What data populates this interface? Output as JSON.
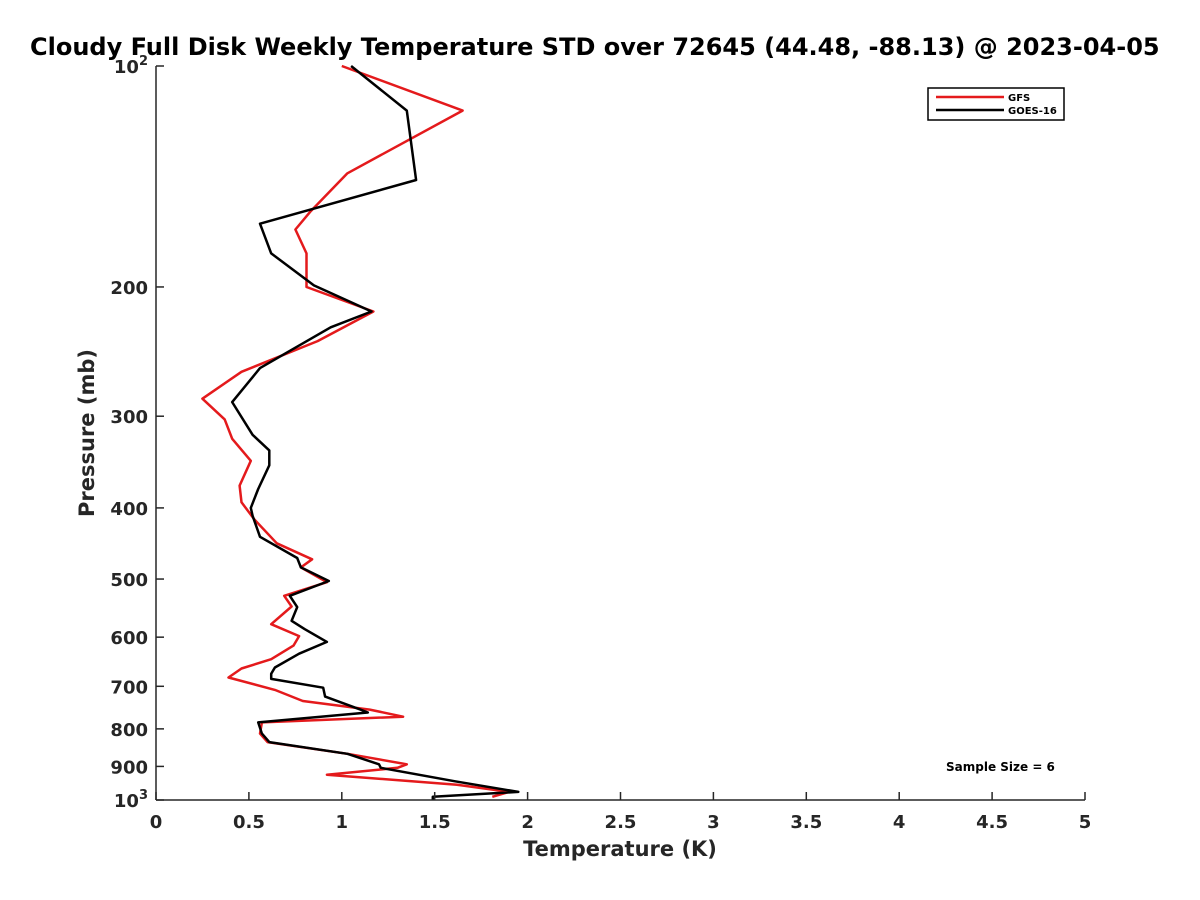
{
  "chart_data": {
    "type": "line",
    "title": "Cloudy Full Disk Weekly Temperature STD over 72645 (44.48, -88.13) @ 2023-04-05",
    "xlabel": "Temperature (K)",
    "ylabel": "Pressure (mb)",
    "xlim": [
      0,
      5
    ],
    "ylim": [
      100,
      1000
    ],
    "y_scale": "log",
    "y_direction": "reversed",
    "x_ticks": [
      0,
      0.5,
      1,
      1.5,
      2,
      2.5,
      3,
      3.5,
      4,
      4.5,
      5
    ],
    "x_tick_labels": [
      "0",
      "0.5",
      "1",
      "1.5",
      "2",
      "2.5",
      "3",
      "3.5",
      "4",
      "4.5",
      "5"
    ],
    "y_ticks": [
      100,
      200,
      300,
      400,
      500,
      600,
      700,
      800,
      900,
      1000
    ],
    "y_tick_labels": [
      {
        "base": "10",
        "exp": "2"
      },
      {
        "base": "200",
        "exp": ""
      },
      {
        "base": "300",
        "exp": ""
      },
      {
        "base": "400",
        "exp": ""
      },
      {
        "base": "500",
        "exp": ""
      },
      {
        "base": "600",
        "exp": ""
      },
      {
        "base": "700",
        "exp": ""
      },
      {
        "base": "800",
        "exp": ""
      },
      {
        "base": "900",
        "exp": ""
      },
      {
        "base": "10",
        "exp": "3"
      }
    ],
    "grid": false,
    "legend_position": "top-right",
    "annotation": "Sample Size = 6",
    "series": [
      {
        "name": "GFS",
        "color": "#e41a1c",
        "x": [
          1.0,
          1.65,
          1.03,
          0.83,
          0.75,
          0.81,
          0.81,
          1.17,
          0.87,
          0.46,
          0.25,
          0.37,
          0.41,
          0.51,
          0.45,
          0.46,
          0.53,
          0.65,
          0.84,
          0.78,
          0.92,
          0.69,
          0.73,
          0.62,
          0.77,
          0.74,
          0.62,
          0.46,
          0.39,
          0.64,
          0.79,
          1.15,
          1.33,
          0.57,
          0.56,
          0.6,
          1.03,
          1.35,
          1.3,
          0.92,
          1.62,
          1.9,
          1.81
        ],
        "y": [
          100,
          115,
          140,
          158,
          167,
          180,
          200,
          216,
          237,
          261,
          284,
          303,
          322,
          345,
          373,
          393,
          415,
          447,
          470,
          482,
          505,
          527,
          545,
          576,
          598,
          616,
          643,
          662,
          681,
          708,
          733,
          753,
          770,
          784,
          812,
          834,
          865,
          894,
          904,
          924,
          953,
          975,
          990
        ]
      },
      {
        "name": "GOES-16",
        "color": "#000000",
        "x": [
          1.05,
          1.35,
          1.4,
          0.56,
          0.62,
          0.85,
          1.16,
          0.94,
          0.56,
          0.41,
          0.52,
          0.61,
          0.61,
          0.55,
          0.51,
          0.52,
          0.56,
          0.76,
          0.78,
          0.93,
          0.72,
          0.76,
          0.73,
          0.8,
          0.92,
          0.77,
          0.64,
          0.62,
          0.62,
          0.9,
          0.91,
          1.1,
          1.14,
          0.55,
          0.57,
          0.61,
          1.03,
          1.2,
          1.21,
          1.61,
          1.95,
          1.49,
          1.49
        ],
        "y": [
          100,
          115,
          143,
          164,
          180,
          199,
          216,
          227,
          258,
          287,
          318,
          334,
          350,
          377,
          400,
          410,
          438,
          468,
          482,
          503,
          527,
          546,
          570,
          585,
          609,
          632,
          660,
          673,
          684,
          703,
          723,
          753,
          760,
          784,
          812,
          834,
          865,
          894,
          904,
          943,
          975,
          990,
          1000
        ]
      }
    ]
  }
}
